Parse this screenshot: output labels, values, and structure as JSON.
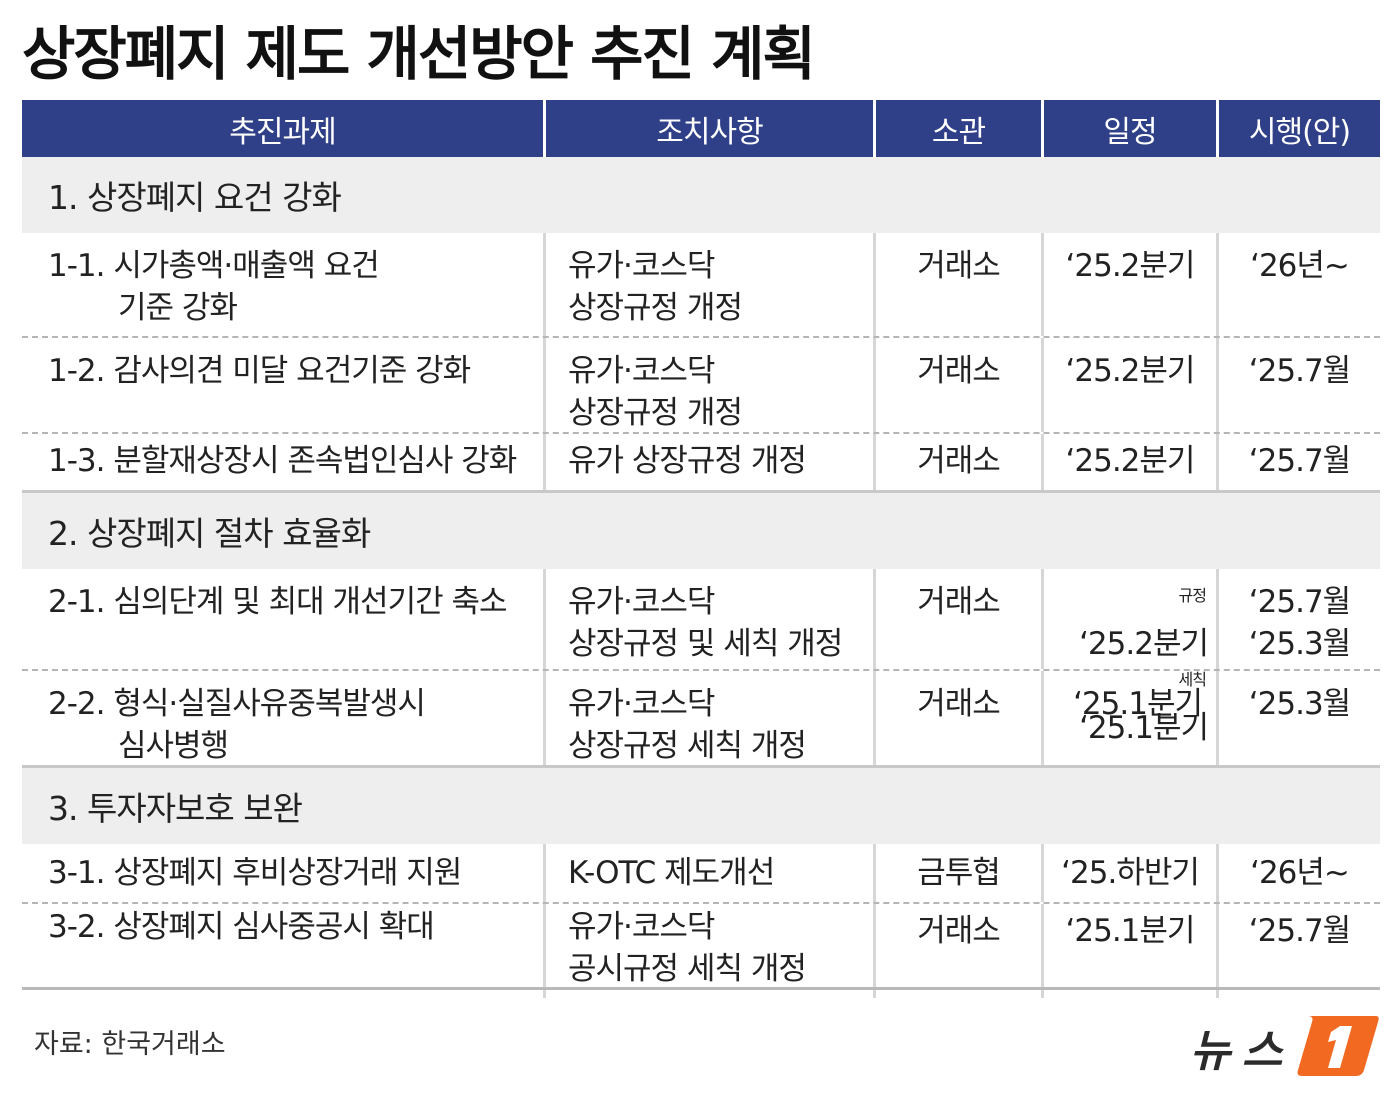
{
  "title": "상장폐지 제도 개선방안 추진 계획",
  "headers": [
    "추진과제",
    "조치사항",
    "소관",
    "일정",
    "시행(안)"
  ],
  "sections": [
    {
      "title": "1. 상장폐지 요건 강화",
      "rows": [
        {
          "task": [
            "1-1. 시가총액·매출액 요건",
            "기준 강화"
          ],
          "measure": [
            "유가·코스닥",
            "상장규정 개정"
          ],
          "dept": "거래소",
          "schedule": [
            "‘25.2분기"
          ],
          "impl": [
            "‘26년~"
          ]
        },
        {
          "task": [
            "1-2. 감사의견 미달 요건기준 강화"
          ],
          "measure": [
            "유가·코스닥",
            "상장규정 개정"
          ],
          "dept": "거래소",
          "schedule": [
            "‘25.2분기"
          ],
          "impl": [
            "‘25.7월"
          ]
        },
        {
          "task": [
            "1-3. 분할재상장시 존속법인심사 강화"
          ],
          "measure": [
            "유가 상장규정 개정"
          ],
          "dept": "거래소",
          "schedule": [
            "‘25.2분기"
          ],
          "impl": [
            "‘25.7월"
          ]
        }
      ]
    },
    {
      "title": "2. 상장폐지 절차 효율화",
      "rows": [
        {
          "task": [
            "2-1. 심의단계 및 최대 개선기간 축소"
          ],
          "measure": [
            "유가·코스닥",
            "상장규정 및 세칙 개정"
          ],
          "dept": "거래소",
          "schedule_prefix": [
            "규정",
            "세칙"
          ],
          "schedule": [
            "‘25.2분기",
            "‘25.1분기"
          ],
          "impl": [
            "‘25.7월",
            "‘25.3월"
          ]
        },
        {
          "task": [
            "2-2. 형식·실질사유중복발생시",
            "심사병행"
          ],
          "measure": [
            "유가·코스닥",
            "상장규정 세칙 개정"
          ],
          "dept": "거래소",
          "schedule": [
            "‘25.1분기"
          ],
          "impl": [
            "‘25.3월"
          ]
        }
      ]
    },
    {
      "title": "3. 투자자보호 보완",
      "rows": [
        {
          "task": [
            "3-1. 상장폐지 후비상장거래 지원"
          ],
          "measure": [
            "K-OTC 제도개선"
          ],
          "dept": "금투협",
          "schedule": [
            "‘25.하반기"
          ],
          "impl": [
            "‘26년~"
          ]
        },
        {
          "task": [
            "3-2. 상장폐지 심사중공시 확대"
          ],
          "measure": [
            "유가·코스닥",
            "공시규정 세칙 개정"
          ],
          "dept": "거래소",
          "schedule": [
            "‘25.1분기"
          ],
          "impl": [
            "‘25.7월"
          ]
        }
      ]
    }
  ],
  "source": "자료: 한국거래소",
  "logo_text": "뉴스1",
  "colors": {
    "header_bg": "#2f3f88",
    "section_bg": "#eeeeef",
    "logo_orange": "#f26a21"
  }
}
